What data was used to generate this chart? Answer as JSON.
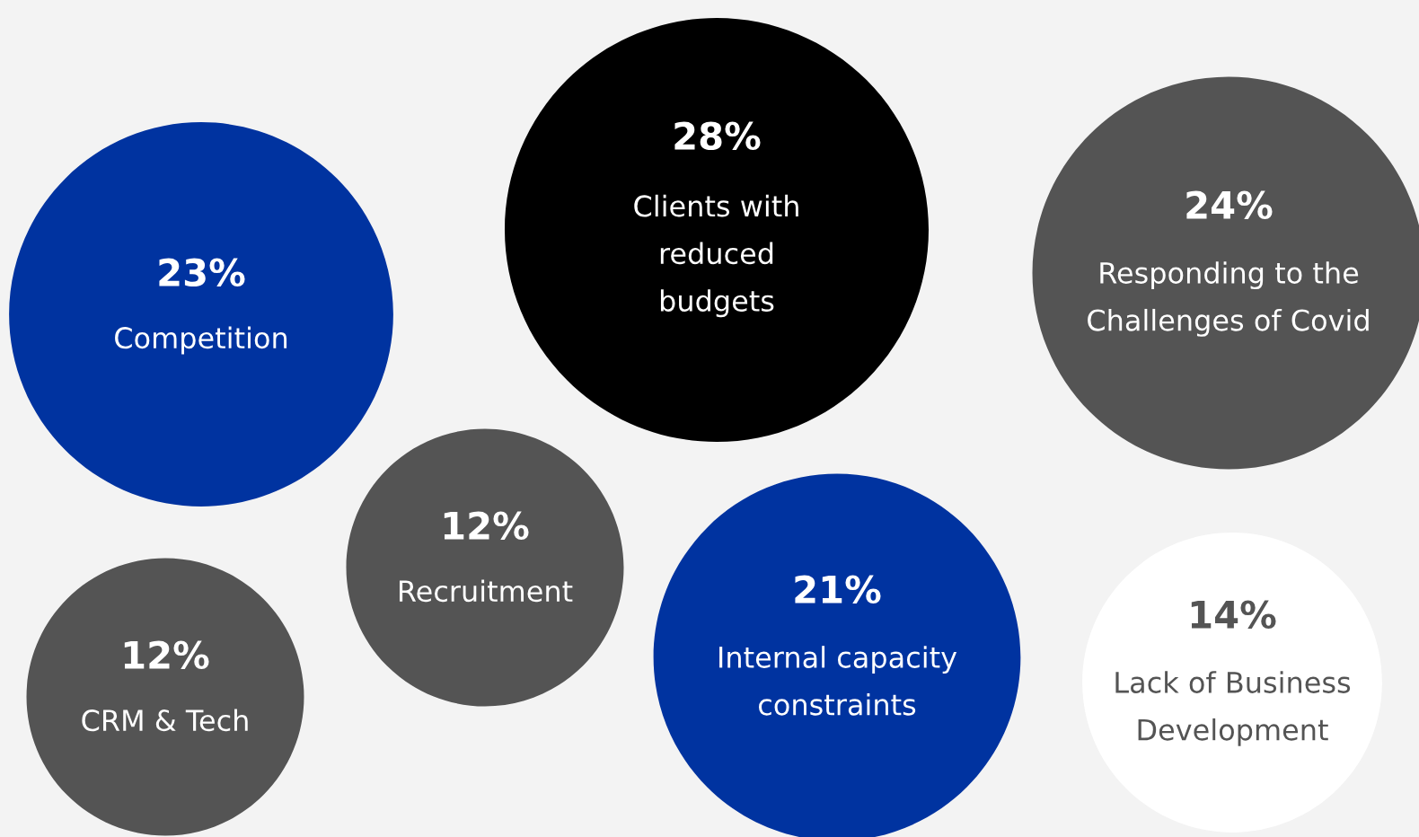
{
  "chart_data": {
    "type": "other",
    "categories": [
      "Competition",
      "Clients with\nreduced\nbudgets",
      "Responding to the\nChallenges of Covid",
      "Recruitment",
      "CRM & Tech",
      "Internal capacity\nconstraints",
      "Lack of Business\nDevelopment"
    ],
    "values": [
      23,
      28,
      24,
      12,
      12,
      21,
      14
    ],
    "value_labels": [
      "23%",
      "28%",
      "24%",
      "12%",
      "12%",
      "21%",
      "14%"
    ],
    "colors": [
      "#0033a0",
      "#000000",
      "#545454",
      "#545454",
      "#545454",
      "#0033a0",
      "#ffffff"
    ]
  }
}
